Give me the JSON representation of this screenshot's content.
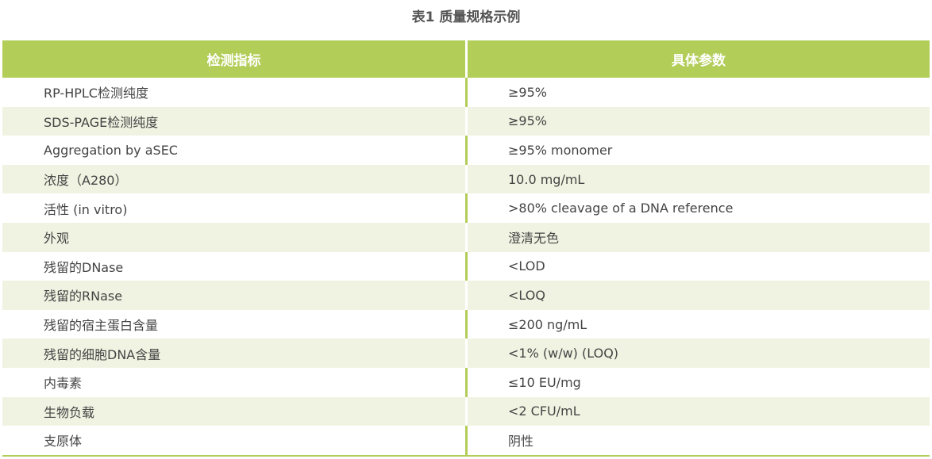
{
  "title": "表1 质量规格示例",
  "table": {
    "headers": [
      "检测指标",
      "具体参数"
    ],
    "rows": [
      {
        "item": "RP-HPLC检测纯度",
        "value": "≥95%"
      },
      {
        "item": "SDS-PAGE检测纯度",
        "value": "≥95%"
      },
      {
        "item": "Aggregation by aSEC",
        "value": "≥95% monomer"
      },
      {
        "item": "浓度（A280）",
        "value": "10.0 mg/mL"
      },
      {
        "item": "活性 (in vitro)",
        "value": ">80% cleavage of a DNA reference"
      },
      {
        "item": "外观",
        "value": "澄清无色"
      },
      {
        "item": "残留的DNase",
        "value": "<LOD"
      },
      {
        "item": "残留的RNase",
        "value": "<LOQ"
      },
      {
        "item": "残留的宿主蛋白含量",
        "value": "≤200 ng/mL"
      },
      {
        "item": "残留的细胞DNA含量",
        "value": "<1% (w/w) (LOQ)"
      },
      {
        "item": "内毒素",
        "value": "≤10 EU/mg"
      },
      {
        "item": "生物负载",
        "value": "<2 CFU/mL"
      },
      {
        "item": "支原体",
        "value": "阴性"
      }
    ]
  },
  "colors": {
    "header_green": "#b3cd59",
    "stripe": "#f1f3e2",
    "text": "#444444"
  }
}
